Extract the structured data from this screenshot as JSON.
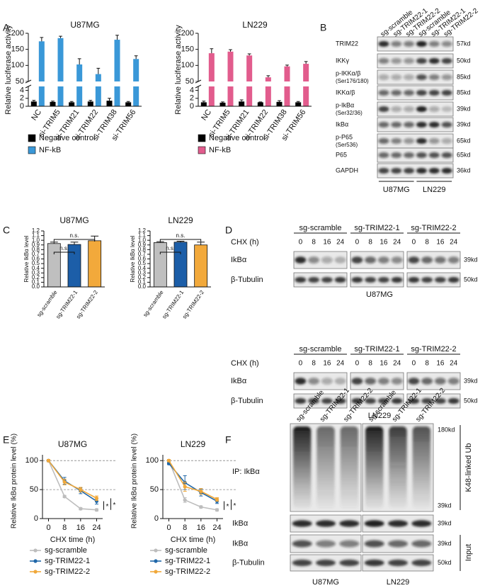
{
  "panel_labels": [
    "A",
    "B",
    "C",
    "D",
    "E",
    "F"
  ],
  "chart_data": [
    {
      "type": "bar",
      "title": "U87MG",
      "y_label": "Relative luciferase activity",
      "categories": [
        "NC",
        "si-TRIM5",
        "si-TRIM21",
        "si-TRIM22",
        "si-TRIM38",
        "si-TRIM56"
      ],
      "series": [
        {
          "name": "Negative control",
          "color": "#000000",
          "values": [
            1.2,
            1.1,
            1.0,
            1.2,
            1.4,
            1.0
          ],
          "errors": [
            0.3,
            0.2,
            0.2,
            0.3,
            0.6,
            0.2
          ]
        },
        {
          "name": "NF-kB",
          "color": "#3a98d8",
          "values": [
            175,
            185,
            103,
            73,
            180,
            120
          ],
          "errors": [
            12,
            6,
            18,
            18,
            14,
            10
          ]
        }
      ],
      "ylim": [
        0,
        200
      ],
      "ybreak": [
        5,
        50
      ],
      "yticks": [
        0,
        2,
        4,
        50,
        100,
        150,
        200
      ],
      "legend": "below"
    },
    {
      "type": "bar",
      "title": "LN229",
      "y_label": "Relative luciferase activity",
      "categories": [
        "NC",
        "si-TRIM5",
        "si-TRIM21",
        "si-TRIM22",
        "si-TRIM38",
        "si-TRIM56"
      ],
      "series": [
        {
          "name": "Negative control",
          "color": "#000000",
          "values": [
            1.0,
            0.9,
            1.2,
            1.0,
            1.1,
            1.0
          ],
          "errors": [
            0.3,
            0.2,
            0.4,
            0.1,
            0.3,
            0.2
          ]
        },
        {
          "name": "NF-kB",
          "color": "#e25c8d",
          "values": [
            138,
            143,
            131,
            63,
            97,
            105
          ],
          "errors": [
            14,
            6,
            5,
            5,
            4,
            7
          ]
        }
      ],
      "ylim": [
        0,
        200
      ],
      "ybreak": [
        5,
        50
      ],
      "yticks": [
        0,
        2,
        4,
        50,
        100,
        150,
        200
      ],
      "legend": "below"
    },
    {
      "type": "bar",
      "title": "U87MG",
      "y_label": "Relative IkBα level",
      "categories": [
        "sg-scramble",
        "sg-TRIM22-1",
        "sg-TRIM22-2"
      ],
      "values": [
        0.93,
        0.91,
        0.99
      ],
      "errors": [
        0.03,
        0.05,
        0.1
      ],
      "colors": [
        "#bfbfbf",
        "#1c5ea8",
        "#f2a93b"
      ],
      "ylim": [
        0,
        1.2
      ],
      "yticks": [
        {
          "value": 0,
          "label": "0.0"
        },
        0.1,
        0.2,
        0.3,
        0.4,
        0.5,
        0.6,
        0.7,
        0.8,
        0.9,
        {
          "value": 1,
          "label": "1.0"
        },
        1.1,
        1.2
      ],
      "annotations": [
        "n.s.",
        "n.s."
      ]
    },
    {
      "type": "bar",
      "title": "LN229",
      "y_label": "Relative IkBα level",
      "categories": [
        "sg-scramble",
        "sg-TRIM22-1",
        "sg-TRIM22-2"
      ],
      "values": [
        0.95,
        0.96,
        0.9
      ],
      "errors": [
        0.02,
        0.02,
        0.06
      ],
      "colors": [
        "#bfbfbf",
        "#1c5ea8",
        "#f2a93b"
      ],
      "ylim": [
        0,
        1.2
      ],
      "yticks": [
        {
          "value": 0,
          "label": "0.0"
        },
        0.1,
        0.2,
        0.3,
        0.4,
        0.5,
        0.6,
        0.7,
        0.8,
        0.9,
        {
          "value": 1,
          "label": "1.0"
        },
        1.1,
        1.2
      ],
      "annotations": [
        "n.s.",
        "n.s."
      ]
    },
    {
      "type": "line",
      "title": "U87MG",
      "x_label": "CHX time (h)",
      "y_label": "Relative IkBα protein level (%)",
      "x": [
        0,
        8,
        16,
        24
      ],
      "xlim": [
        -3,
        27
      ],
      "xticks": [
        0,
        8,
        16,
        24
      ],
      "ylim": [
        0,
        110
      ],
      "yticks": [
        0,
        50,
        100
      ],
      "hlines": [
        50,
        100
      ],
      "series": [
        {
          "name": "sg-scramble",
          "color": "#bdbdbd",
          "values": [
            100,
            38,
            17,
            15
          ],
          "errors": [
            2,
            2,
            2,
            2
          ]
        },
        {
          "name": "sg-TRIM22-1",
          "color": "#2067a8",
          "values": [
            100,
            65,
            48,
            30
          ],
          "errors": [
            2,
            6,
            5,
            5
          ]
        },
        {
          "name": "sg-TRIM22-2",
          "color": "#f0a83a",
          "values": [
            100,
            63,
            50,
            35
          ],
          "errors": [
            2,
            5,
            4,
            4
          ]
        }
      ],
      "annotations": [
        "*",
        "*"
      ],
      "legend": "below"
    },
    {
      "type": "line",
      "title": "LN229",
      "x_label": "CHX time (h)",
      "y_label": "Relative IkBα protein level (%)",
      "x": [
        0,
        8,
        16,
        24
      ],
      "xlim": [
        -3,
        27
      ],
      "xticks": [
        0,
        8,
        16,
        24
      ],
      "ylim": [
        0,
        110
      ],
      "yticks": [
        0,
        50,
        100
      ],
      "hlines": [
        50,
        100
      ],
      "series": [
        {
          "name": "sg-scramble",
          "color": "#bdbdbd",
          "values": [
            100,
            32,
            20,
            15
          ],
          "errors": [
            2,
            4,
            2,
            2
          ]
        },
        {
          "name": "sg-TRIM22-1",
          "color": "#2067a8",
          "values": [
            95,
            62,
            45,
            30
          ],
          "errors": [
            2,
            12,
            6,
            4
          ]
        },
        {
          "name": "sg-TRIM22-2",
          "color": "#f0a83a",
          "values": [
            100,
            55,
            47,
            33
          ],
          "errors": [
            2,
            8,
            5,
            3
          ]
        }
      ],
      "annotations": [
        "*",
        "*"
      ],
      "legend": "below"
    }
  ],
  "blot_B": {
    "columns": [
      "sg-scramble",
      "sg-TRIM22-1",
      "sg-TRIM22-2",
      "sg-scramble",
      "sg-TRIM22-1",
      "sg-TRIM22-2"
    ],
    "rows": [
      {
        "label": "TRIM22",
        "kd": "57kd"
      },
      {
        "label": "IKKγ",
        "kd": "50kd"
      },
      {
        "label": "p-IKKα/β",
        "sublabel": "(Ser176/180)",
        "kd": "85kd"
      },
      {
        "label": "IKKα/β",
        "kd": "85kd"
      },
      {
        "label": "p-IkBα",
        "sublabel": "(Ser32/36)",
        "kd": "39kd"
      },
      {
        "label": "IkBα",
        "kd": "39kd"
      },
      {
        "label": "p-P65",
        "sublabel": "(Ser536)",
        "kd": "65kd"
      },
      {
        "label": "P65",
        "kd": "65kd"
      },
      {
        "label": "GAPDH",
        "kd": "36kd"
      }
    ],
    "cell_lines": [
      "U87MG",
      "LN229"
    ]
  },
  "blot_D": {
    "groups": [
      "sg-scramble",
      "sg-TRIM22-1",
      "sg-TRIM22-2"
    ],
    "time_label": "CHX (h)",
    "times": [
      0,
      8,
      16,
      24
    ],
    "rows": [
      {
        "label": "IkBα",
        "kd": "39kd"
      },
      {
        "label": "β-Tubulin",
        "kd": "50kd"
      }
    ],
    "cell_lines": [
      "U87MG",
      "LN229"
    ]
  },
  "blot_F": {
    "columns": [
      "sg-scramble",
      "sg-TRIM22-1",
      "sg-TRIM22-2",
      "sg-scramble",
      "sg-TRIM22-1",
      "sg-TRIM22-2"
    ],
    "rows": [
      {
        "label": "IP: IkBα",
        "kd": [
          "180kd",
          "39kd"
        ]
      },
      {
        "label": "IkBα",
        "kd": [
          "39kd"
        ]
      },
      {
        "label": "IkBα",
        "kd": [
          "39kd"
        ]
      },
      {
        "label": "β-Tubulin",
        "kd": [
          "50kd"
        ]
      }
    ],
    "side_labels": [
      "K48-linked Ub",
      "Input"
    ],
    "cell_lines": [
      "U87MG",
      "LN229"
    ]
  }
}
